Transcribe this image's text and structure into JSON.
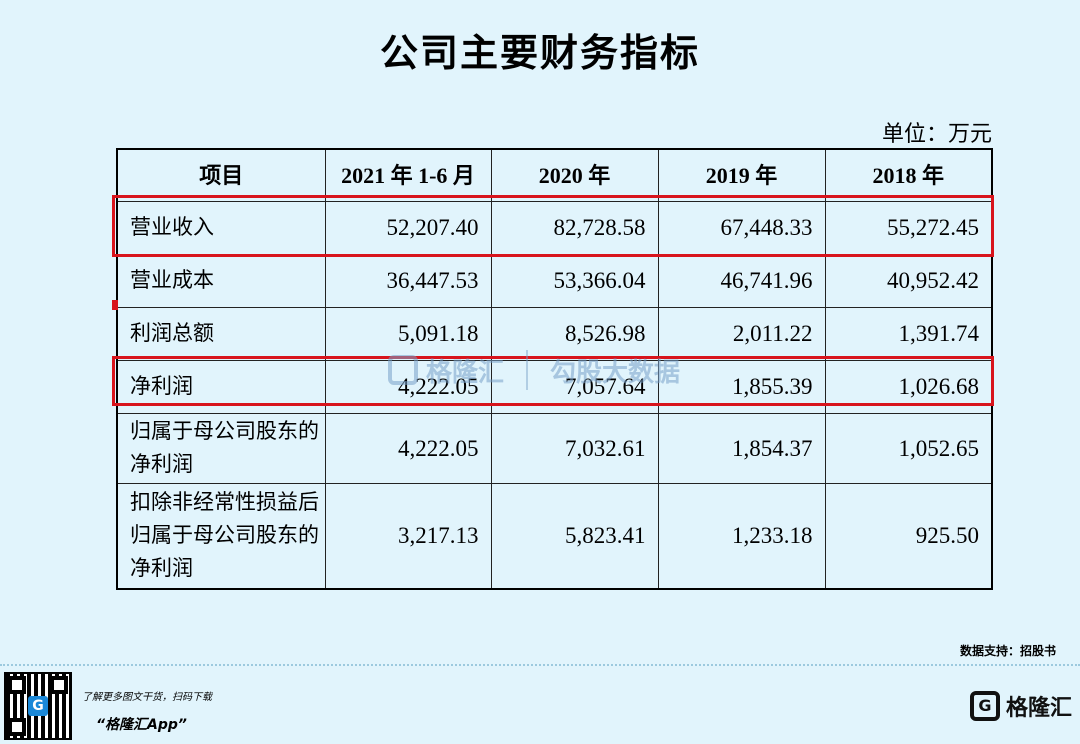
{
  "title": "公司主要财务指标",
  "unit": "单位：万元",
  "table": {
    "headers": [
      "项目",
      "2021 年 1-6 月",
      "2020 年",
      "2019 年",
      "2018 年"
    ],
    "rows": [
      {
        "name": "营业收入",
        "values": [
          "52,207.40",
          "82,728.58",
          "67,448.33",
          "55,272.45"
        ],
        "highlight": true
      },
      {
        "name": "营业成本",
        "values": [
          "36,447.53",
          "53,366.04",
          "46,741.96",
          "40,952.42"
        ],
        "highlight": false
      },
      {
        "name": "利润总额",
        "values": [
          "5,091.18",
          "8,526.98",
          "2,011.22",
          "1,391.74"
        ],
        "highlight": false
      },
      {
        "name": "净利润",
        "values": [
          "4,222.05",
          "7,057.64",
          "1,855.39",
          "1,026.68"
        ],
        "highlight": true
      },
      {
        "name": "归属于母公司股东的净利润",
        "values": [
          "4,222.05",
          "7,032.61",
          "1,854.37",
          "1,052.65"
        ],
        "highlight": false
      },
      {
        "name": "扣除非经常性损益后归属于母公司股东的净利润",
        "values": [
          "3,217.13",
          "5,823.41",
          "1,233.18",
          "925.50"
        ],
        "highlight": false
      }
    ]
  },
  "watermark": {
    "brand": "格隆汇",
    "data": "勾股大数据"
  },
  "source": "数据支持：招股书",
  "footer": {
    "promo_line": "了解更多图文干货，扫码下载",
    "app_name": "“格隆汇App”",
    "logo_text": "格隆汇",
    "logo_glyph": "G"
  },
  "colors": {
    "background": "#e1f4fc",
    "highlight": "#d8141c"
  }
}
